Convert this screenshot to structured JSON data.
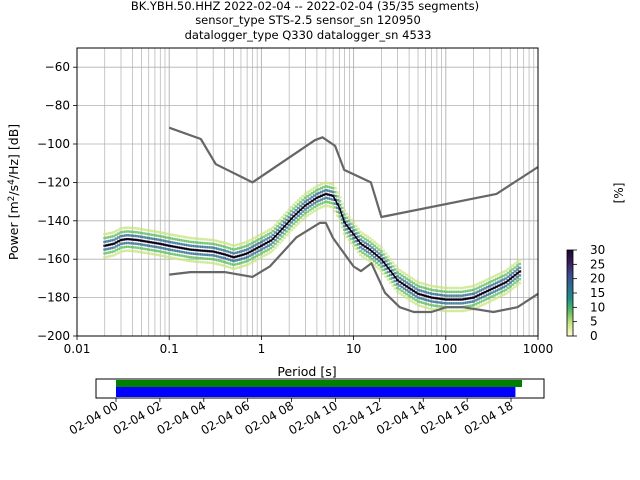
{
  "title_lines": [
    "BK.YBH.50.HHZ   2022-02-04 -- 2022-02-04  (35/35 segments)",
    "sensor_type STS-2.5 sensor_sn 120950",
    "datalogger_type Q330 datalogger_sn 4533"
  ],
  "colorbar": {
    "label": "[%]",
    "ticks": [
      "0",
      "5",
      "10",
      "15",
      "20",
      "25",
      "30"
    ],
    "range": [
      0,
      30
    ],
    "colors": [
      "#fefcd0",
      "#c9e586",
      "#5fbd5e",
      "#21908c",
      "#2c6f8e",
      "#3b4a8c",
      "#3b1c5a",
      "#1a0a2e"
    ]
  },
  "timeline": {
    "tick_labels": [
      "02-04 00",
      "02-04 02",
      "02-04 04",
      "02-04 06",
      "02-04 08",
      "02-04 10",
      "02-04 12",
      "02-04 14",
      "02-04 16",
      "02-04 18"
    ],
    "data_color": "#008000",
    "psd_color": "#0000ff"
  },
  "chart_data": {
    "type": "line",
    "title": "BK.YBH.50.HHZ   2022-02-04 -- 2022-02-04  (35/35 segments)",
    "xlabel": "Period [s]",
    "ylabel": "Power [m²/s⁴/Hz] [dB]",
    "x_scale": "log",
    "xlim": [
      0.01,
      1000
    ],
    "ylim": [
      -200,
      -50
    ],
    "x_tick_labels": [
      "0.01",
      "0.1",
      "1",
      "10",
      "100",
      "1000"
    ],
    "y_tick_labels": [
      "−200",
      "−180",
      "−160",
      "−140",
      "−120",
      "−100",
      "−80",
      "−60"
    ],
    "y_ticks": [
      -200,
      -180,
      -160,
      -140,
      -120,
      -100,
      -80,
      -60
    ],
    "grid": true,
    "series": [
      {
        "role": "high-noise-model",
        "color": "#666666",
        "x": [
          0.1,
          0.22,
          0.32,
          0.8,
          3.8,
          4.6,
          6.3,
          7.9,
          15.4,
          20,
          354.8,
          1000
        ],
        "y": [
          -91.5,
          -97.4,
          -110.5,
          -120,
          -98,
          -96.5,
          -101,
          -113.5,
          -120,
          -138,
          -126,
          -112
        ]
      },
      {
        "role": "low-noise-model",
        "color": "#666666",
        "x": [
          0.1,
          0.17,
          0.4,
          0.8,
          1.24,
          2.4,
          4.3,
          5.0,
          6.0,
          10,
          12,
          15.6,
          21.9,
          31.6,
          45,
          70,
          101,
          154,
          328,
          600,
          1000
        ],
        "y": [
          -168,
          -166.7,
          -166.7,
          -169.2,
          -163.7,
          -148.6,
          -141.1,
          -141.1,
          -149,
          -163.8,
          -166.2,
          -162.1,
          -177.5,
          -185,
          -187.5,
          -187.5,
          -185,
          -185,
          -187.5,
          -185,
          -178
        ]
      },
      {
        "role": "mean-psd",
        "color": "#000000",
        "x": [
          0.02,
          0.025,
          0.03,
          0.035,
          0.045,
          0.06,
          0.08,
          0.1,
          0.13,
          0.17,
          0.22,
          0.3,
          0.4,
          0.5,
          0.6,
          0.7,
          0.8,
          1.0,
          1.3,
          1.7,
          2.2,
          3.0,
          4.0,
          5.0,
          6.0,
          7.0,
          8.0,
          10,
          12,
          15,
          20,
          25,
          30,
          40,
          50,
          70,
          100,
          150,
          200,
          300,
          450,
          650
        ],
        "y": [
          -153,
          -152,
          -150,
          -149.5,
          -150,
          -151,
          -152,
          -153,
          -154,
          -155,
          -155.5,
          -156,
          -157.5,
          -159,
          -158,
          -157,
          -155.5,
          -153,
          -150,
          -144,
          -138,
          -132,
          -128,
          -126,
          -127,
          -133,
          -141,
          -147,
          -152,
          -155,
          -160,
          -166,
          -171,
          -175,
          -178,
          -180,
          -181,
          -181,
          -180,
          -176,
          -172,
          -166
        ]
      }
    ],
    "timeline_spans_hours": {
      "data": [
        0,
        18.5
      ],
      "psd": [
        0,
        18.2
      ]
    }
  }
}
